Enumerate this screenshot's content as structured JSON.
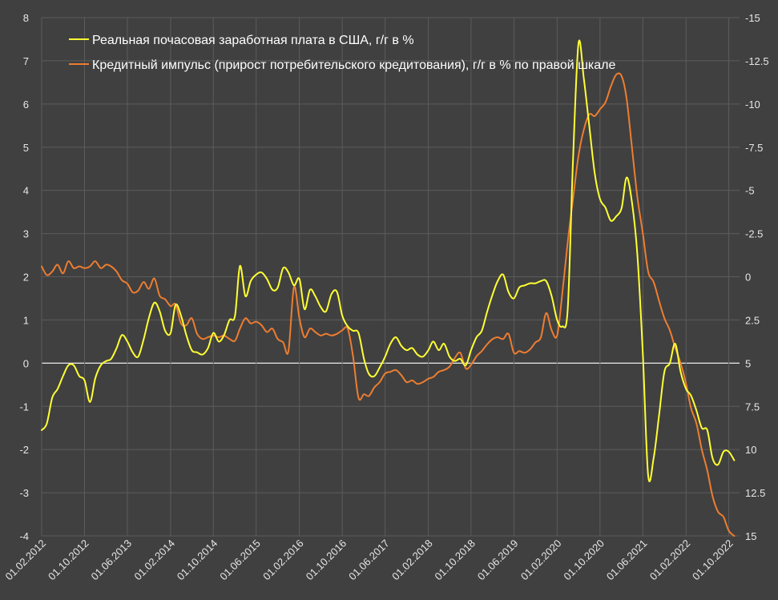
{
  "chart_data": {
    "type": "line",
    "title": "",
    "xlabel": "",
    "ylabel_left": "",
    "ylabel_right": "",
    "x_tick_labels": [
      "01.02.2012",
      "01.10.2012",
      "01.06.2013",
      "01.02.2014",
      "01.10.2014",
      "01.06.2015",
      "01.02.2016",
      "01.10.2016",
      "01.06.2017",
      "01.02.2018",
      "01.10.2018",
      "01.06.2019",
      "01.02.2020",
      "01.10.2020",
      "01.06.2021",
      "01.02.2022",
      "01.10.2022"
    ],
    "x_range": [
      "2012-02-01",
      "2022-12-01"
    ],
    "y_left": {
      "min": -4,
      "max": 8,
      "ticks": [
        "-4",
        "-3",
        "-2",
        "-1",
        "0",
        "1",
        "2",
        "3",
        "4",
        "5",
        "6",
        "7",
        "8"
      ]
    },
    "y_right": {
      "min": -15,
      "max": 15,
      "inverted": true,
      "ticks": [
        "-15",
        "-12.5",
        "-10",
        "-7.5",
        "-5",
        "-2.5",
        "0",
        "2.5",
        "5",
        "7.5",
        "10",
        "12.5",
        "15"
      ]
    },
    "grid": true,
    "legend_position": "top-left",
    "series": [
      {
        "name": "Реальная почасовая заработная плата в США, г/г в %",
        "axis": "left",
        "color": "#ffff33",
        "points": [
          [
            "2012-02-01",
            -1.55
          ],
          [
            "2012-03-01",
            -1.4
          ],
          [
            "2012-04-01",
            -0.8
          ],
          [
            "2012-05-01",
            -0.6
          ],
          [
            "2012-06-01",
            -0.3
          ],
          [
            "2012-07-01",
            -0.05
          ],
          [
            "2012-08-01",
            -0.05
          ],
          [
            "2012-09-01",
            -0.3
          ],
          [
            "2012-10-01",
            -0.4
          ],
          [
            "2012-11-01",
            -0.9
          ],
          [
            "2012-12-01",
            -0.35
          ],
          [
            "2013-01-01",
            -0.05
          ],
          [
            "2013-02-01",
            0.05
          ],
          [
            "2013-03-01",
            0.1
          ],
          [
            "2013-04-01",
            0.35
          ],
          [
            "2013-05-01",
            0.65
          ],
          [
            "2013-06-01",
            0.5
          ],
          [
            "2013-07-01",
            0.25
          ],
          [
            "2013-08-01",
            0.15
          ],
          [
            "2013-09-01",
            0.55
          ],
          [
            "2013-10-01",
            1.05
          ],
          [
            "2013-11-01",
            1.4
          ],
          [
            "2013-12-01",
            1.2
          ],
          [
            "2014-01-01",
            0.75
          ],
          [
            "2014-02-01",
            0.7
          ],
          [
            "2014-03-01",
            1.35
          ],
          [
            "2014-04-01",
            1.1
          ],
          [
            "2014-05-01",
            0.65
          ],
          [
            "2014-06-01",
            0.3
          ],
          [
            "2014-07-01",
            0.25
          ],
          [
            "2014-08-01",
            0.2
          ],
          [
            "2014-09-01",
            0.35
          ],
          [
            "2014-10-01",
            0.7
          ],
          [
            "2014-11-01",
            0.5
          ],
          [
            "2014-12-01",
            0.65
          ],
          [
            "2015-01-01",
            1.0
          ],
          [
            "2015-02-01",
            1.1
          ],
          [
            "2015-03-01",
            2.25
          ],
          [
            "2015-04-01",
            1.55
          ],
          [
            "2015-05-01",
            1.9
          ],
          [
            "2015-06-01",
            2.05
          ],
          [
            "2015-07-01",
            2.1
          ],
          [
            "2015-08-01",
            1.95
          ],
          [
            "2015-09-01",
            1.7
          ],
          [
            "2015-10-01",
            1.75
          ],
          [
            "2015-11-01",
            2.2
          ],
          [
            "2015-12-01",
            2.1
          ],
          [
            "2016-01-01",
            1.8
          ],
          [
            "2016-02-01",
            1.95
          ],
          [
            "2016-03-01",
            1.25
          ],
          [
            "2016-04-01",
            1.7
          ],
          [
            "2016-05-01",
            1.55
          ],
          [
            "2016-06-01",
            1.3
          ],
          [
            "2016-07-01",
            1.2
          ],
          [
            "2016-08-01",
            1.6
          ],
          [
            "2016-09-01",
            1.65
          ],
          [
            "2016-10-01",
            1.1
          ],
          [
            "2016-11-01",
            0.85
          ],
          [
            "2016-12-01",
            0.75
          ],
          [
            "2017-01-01",
            0.7
          ],
          [
            "2017-02-01",
            0.1
          ],
          [
            "2017-03-01",
            -0.25
          ],
          [
            "2017-04-01",
            -0.3
          ],
          [
            "2017-05-01",
            -0.1
          ],
          [
            "2017-06-01",
            0.15
          ],
          [
            "2017-07-01",
            0.45
          ],
          [
            "2017-08-01",
            0.6
          ],
          [
            "2017-09-01",
            0.4
          ],
          [
            "2017-10-01",
            0.3
          ],
          [
            "2017-11-01",
            0.35
          ],
          [
            "2017-12-01",
            0.2
          ],
          [
            "2018-01-01",
            0.15
          ],
          [
            "2018-02-01",
            0.3
          ],
          [
            "2018-03-01",
            0.5
          ],
          [
            "2018-04-01",
            0.3
          ],
          [
            "2018-05-01",
            0.45
          ],
          [
            "2018-06-01",
            0.15
          ],
          [
            "2018-07-01",
            0.05
          ],
          [
            "2018-08-01",
            0.1
          ],
          [
            "2018-09-01",
            -0.05
          ],
          [
            "2018-10-01",
            0.3
          ],
          [
            "2018-11-01",
            0.6
          ],
          [
            "2018-12-01",
            0.75
          ],
          [
            "2019-01-01",
            1.2
          ],
          [
            "2019-02-01",
            1.6
          ],
          [
            "2019-03-01",
            1.9
          ],
          [
            "2019-04-01",
            2.05
          ],
          [
            "2019-05-01",
            1.65
          ],
          [
            "2019-06-01",
            1.5
          ],
          [
            "2019-07-01",
            1.75
          ],
          [
            "2019-08-01",
            1.8
          ],
          [
            "2019-09-01",
            1.85
          ],
          [
            "2019-10-01",
            1.85
          ],
          [
            "2019-11-01",
            1.9
          ],
          [
            "2019-12-01",
            1.9
          ],
          [
            "2020-01-01",
            1.55
          ],
          [
            "2020-02-01",
            1.0
          ],
          [
            "2020-03-01",
            0.85
          ],
          [
            "2020-04-01",
            1.25
          ],
          [
            "2020-05-01",
            4.7
          ],
          [
            "2020-06-01",
            7.4
          ],
          [
            "2020-07-01",
            6.6
          ],
          [
            "2020-08-01",
            5.5
          ],
          [
            "2020-09-01",
            4.4
          ],
          [
            "2020-10-01",
            3.8
          ],
          [
            "2020-11-01",
            3.6
          ],
          [
            "2020-12-01",
            3.3
          ],
          [
            "2021-01-01",
            3.4
          ],
          [
            "2021-02-01",
            3.6
          ],
          [
            "2021-03-01",
            4.3
          ],
          [
            "2021-04-01",
            3.7
          ],
          [
            "2021-05-01",
            2.5
          ],
          [
            "2021-06-01",
            0.2
          ],
          [
            "2021-07-01",
            -2.6
          ],
          [
            "2021-08-01",
            -2.2
          ],
          [
            "2021-09-01",
            -1.2
          ],
          [
            "2021-10-01",
            -0.2
          ],
          [
            "2021-11-01",
            0.0
          ],
          [
            "2021-12-01",
            0.45
          ],
          [
            "2022-01-01",
            -0.2
          ],
          [
            "2022-02-01",
            -0.6
          ],
          [
            "2022-03-01",
            -0.75
          ],
          [
            "2022-04-01",
            -1.1
          ],
          [
            "2022-05-01",
            -1.5
          ],
          [
            "2022-06-01",
            -1.55
          ],
          [
            "2022-07-01",
            -2.2
          ],
          [
            "2022-08-01",
            -2.35
          ],
          [
            "2022-09-01",
            -2.05
          ],
          [
            "2022-10-01",
            -2.05
          ],
          [
            "2022-11-01",
            -2.25
          ]
        ]
      },
      {
        "name": "Кредитный импульс (прирост потребительского кредитования), г/г в % по правой шкале",
        "axis": "right",
        "color": "#ed7d31",
        "points": [
          [
            "2012-02-01",
            -0.6
          ],
          [
            "2012-03-01",
            -0.1
          ],
          [
            "2012-04-01",
            -0.3
          ],
          [
            "2012-05-01",
            -0.7
          ],
          [
            "2012-06-01",
            -0.2
          ],
          [
            "2012-07-01",
            -0.9
          ],
          [
            "2012-08-01",
            -0.5
          ],
          [
            "2012-09-01",
            -0.6
          ],
          [
            "2012-10-01",
            -0.5
          ],
          [
            "2012-11-01",
            -0.6
          ],
          [
            "2012-12-01",
            -0.9
          ],
          [
            "2013-01-01",
            -0.5
          ],
          [
            "2013-02-01",
            -0.7
          ],
          [
            "2013-03-01",
            -0.6
          ],
          [
            "2013-04-01",
            -0.3
          ],
          [
            "2013-05-01",
            0.2
          ],
          [
            "2013-06-01",
            0.4
          ],
          [
            "2013-07-01",
            0.9
          ],
          [
            "2013-08-01",
            0.8
          ],
          [
            "2013-09-01",
            0.3
          ],
          [
            "2013-10-01",
            0.7
          ],
          [
            "2013-11-01",
            0.1
          ],
          [
            "2013-12-01",
            1.1
          ],
          [
            "2014-01-01",
            1.3
          ],
          [
            "2014-02-01",
            1.7
          ],
          [
            "2014-03-01",
            1.6
          ],
          [
            "2014-04-01",
            2.7
          ],
          [
            "2014-05-01",
            2.8
          ],
          [
            "2014-06-01",
            2.4
          ],
          [
            "2014-07-01",
            3.3
          ],
          [
            "2014-08-01",
            3.6
          ],
          [
            "2014-09-01",
            3.5
          ],
          [
            "2014-10-01",
            3.4
          ],
          [
            "2014-11-01",
            3.5
          ],
          [
            "2014-12-01",
            3.4
          ],
          [
            "2015-01-01",
            3.6
          ],
          [
            "2015-02-01",
            3.7
          ],
          [
            "2015-03-01",
            3.0
          ],
          [
            "2015-04-01",
            2.4
          ],
          [
            "2015-05-01",
            2.7
          ],
          [
            "2015-06-01",
            2.6
          ],
          [
            "2015-07-01",
            2.8
          ],
          [
            "2015-08-01",
            3.2
          ],
          [
            "2015-09-01",
            3.0
          ],
          [
            "2015-10-01",
            3.6
          ],
          [
            "2015-11-01",
            3.8
          ],
          [
            "2015-12-01",
            4.3
          ],
          [
            "2016-01-01",
            0.6
          ],
          [
            "2016-02-01",
            2.4
          ],
          [
            "2016-03-01",
            3.5
          ],
          [
            "2016-04-01",
            3.0
          ],
          [
            "2016-05-01",
            3.2
          ],
          [
            "2016-06-01",
            3.4
          ],
          [
            "2016-07-01",
            3.3
          ],
          [
            "2016-08-01",
            3.4
          ],
          [
            "2016-09-01",
            3.3
          ],
          [
            "2016-10-01",
            3.1
          ],
          [
            "2016-11-01",
            3.0
          ],
          [
            "2016-12-01",
            4.6
          ],
          [
            "2017-01-01",
            7.0
          ],
          [
            "2017-02-01",
            6.8
          ],
          [
            "2017-03-01",
            6.9
          ],
          [
            "2017-04-01",
            6.4
          ],
          [
            "2017-05-01",
            6.1
          ],
          [
            "2017-06-01",
            5.6
          ],
          [
            "2017-07-01",
            5.5
          ],
          [
            "2017-08-01",
            5.4
          ],
          [
            "2017-09-01",
            5.7
          ],
          [
            "2017-10-01",
            6.1
          ],
          [
            "2017-11-01",
            6.0
          ],
          [
            "2017-12-01",
            6.2
          ],
          [
            "2018-01-01",
            6.1
          ],
          [
            "2018-02-01",
            5.9
          ],
          [
            "2018-03-01",
            5.8
          ],
          [
            "2018-04-01",
            5.5
          ],
          [
            "2018-05-01",
            5.4
          ],
          [
            "2018-06-01",
            5.2
          ],
          [
            "2018-07-01",
            4.7
          ],
          [
            "2018-08-01",
            4.4
          ],
          [
            "2018-09-01",
            5.3
          ],
          [
            "2018-10-01",
            5.1
          ],
          [
            "2018-11-01",
            4.6
          ],
          [
            "2018-12-01",
            4.3
          ],
          [
            "2019-01-01",
            3.9
          ],
          [
            "2019-02-01",
            3.6
          ],
          [
            "2019-03-01",
            3.5
          ],
          [
            "2019-04-01",
            3.6
          ],
          [
            "2019-05-01",
            3.3
          ],
          [
            "2019-06-01",
            4.4
          ],
          [
            "2019-07-01",
            4.3
          ],
          [
            "2019-08-01",
            4.4
          ],
          [
            "2019-09-01",
            4.2
          ],
          [
            "2019-10-01",
            3.8
          ],
          [
            "2019-11-01",
            3.5
          ],
          [
            "2019-12-01",
            2.1
          ],
          [
            "2020-01-01",
            3.1
          ],
          [
            "2020-02-01",
            3.4
          ],
          [
            "2020-03-01",
            1.0
          ],
          [
            "2020-04-01",
            -2.0
          ],
          [
            "2020-05-01",
            -4.5
          ],
          [
            "2020-06-01",
            -7.0
          ],
          [
            "2020-07-01",
            -8.5
          ],
          [
            "2020-08-01",
            -9.4
          ],
          [
            "2020-09-01",
            -9.3
          ],
          [
            "2020-10-01",
            -9.7
          ],
          [
            "2020-11-01",
            -10.1
          ],
          [
            "2020-12-01",
            -11.0
          ],
          [
            "2021-01-01",
            -11.7
          ],
          [
            "2021-02-01",
            -11.6
          ],
          [
            "2021-03-01",
            -10.3
          ],
          [
            "2021-04-01",
            -7.4
          ],
          [
            "2021-05-01",
            -4.6
          ],
          [
            "2021-06-01",
            -2.5
          ],
          [
            "2021-07-01",
            -0.3
          ],
          [
            "2021-08-01",
            0.3
          ],
          [
            "2021-09-01",
            1.4
          ],
          [
            "2021-10-01",
            2.4
          ],
          [
            "2021-11-01",
            3.1
          ],
          [
            "2021-12-01",
            4.1
          ],
          [
            "2022-01-01",
            5.0
          ],
          [
            "2022-02-01",
            6.2
          ],
          [
            "2022-03-01",
            7.6
          ],
          [
            "2022-04-01",
            8.5
          ],
          [
            "2022-05-01",
            10.0
          ],
          [
            "2022-06-01",
            11.2
          ],
          [
            "2022-07-01",
            12.7
          ],
          [
            "2022-08-01",
            13.6
          ],
          [
            "2022-09-01",
            13.9
          ],
          [
            "2022-10-01",
            14.7
          ],
          [
            "2022-11-01",
            15.0
          ]
        ]
      }
    ]
  }
}
